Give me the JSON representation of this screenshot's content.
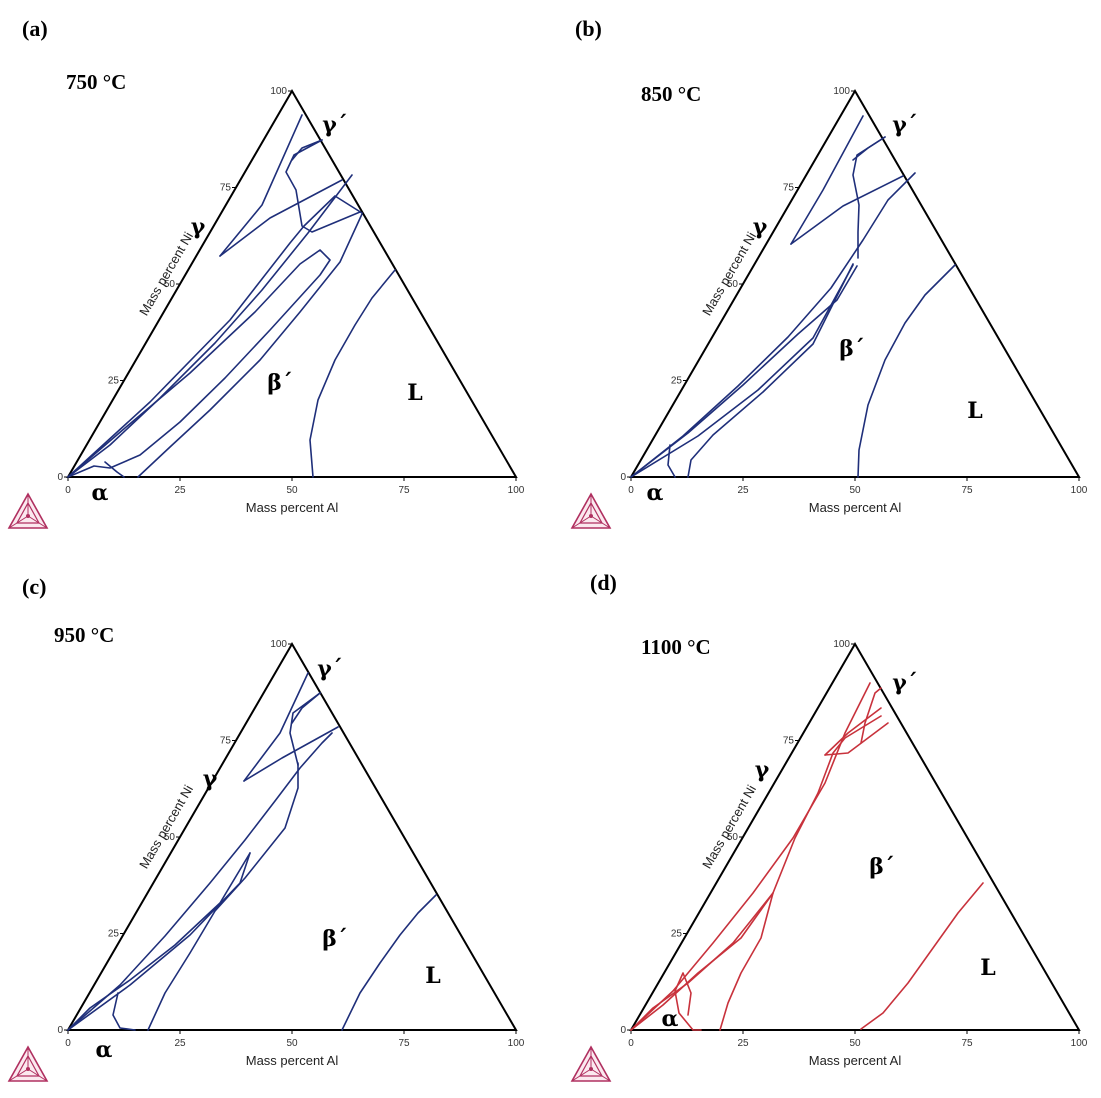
{
  "figure": {
    "axis_labels": {
      "x": "Mass percent Al",
      "y": "Mass percent Ni"
    },
    "tick_values": [
      "0",
      "25",
      "50",
      "75",
      "100"
    ],
    "panels": [
      {
        "label": "(a)",
        "temperature": "750 °C",
        "line_color": "#1f2f7a",
        "phases": {
          "gamma": "γ",
          "gamma_prime": "γ´",
          "beta_prime": "β´",
          "liquid": "L",
          "alpha": "α"
        }
      },
      {
        "label": "(b)",
        "temperature": "850 °C",
        "line_color": "#1f2f7a",
        "phases": {
          "gamma": "γ",
          "gamma_prime": "γ´",
          "beta_prime": "β´",
          "liquid": "L",
          "alpha": "α"
        }
      },
      {
        "label": "(c)",
        "temperature": "950 °C",
        "line_color": "#1f2f7a",
        "phases": {
          "gamma": "γ",
          "gamma_prime": "γ´",
          "beta_prime": "β´",
          "liquid": "L",
          "alpha": "α"
        }
      },
      {
        "label": "(d)",
        "temperature": "1100 °C",
        "line_color": "#c8323c",
        "phases": {
          "gamma": "γ",
          "gamma_prime": "γ´",
          "beta_prime": "β´",
          "liquid": "L",
          "alpha": "α"
        }
      }
    ],
    "logo_color": "#b03060"
  }
}
